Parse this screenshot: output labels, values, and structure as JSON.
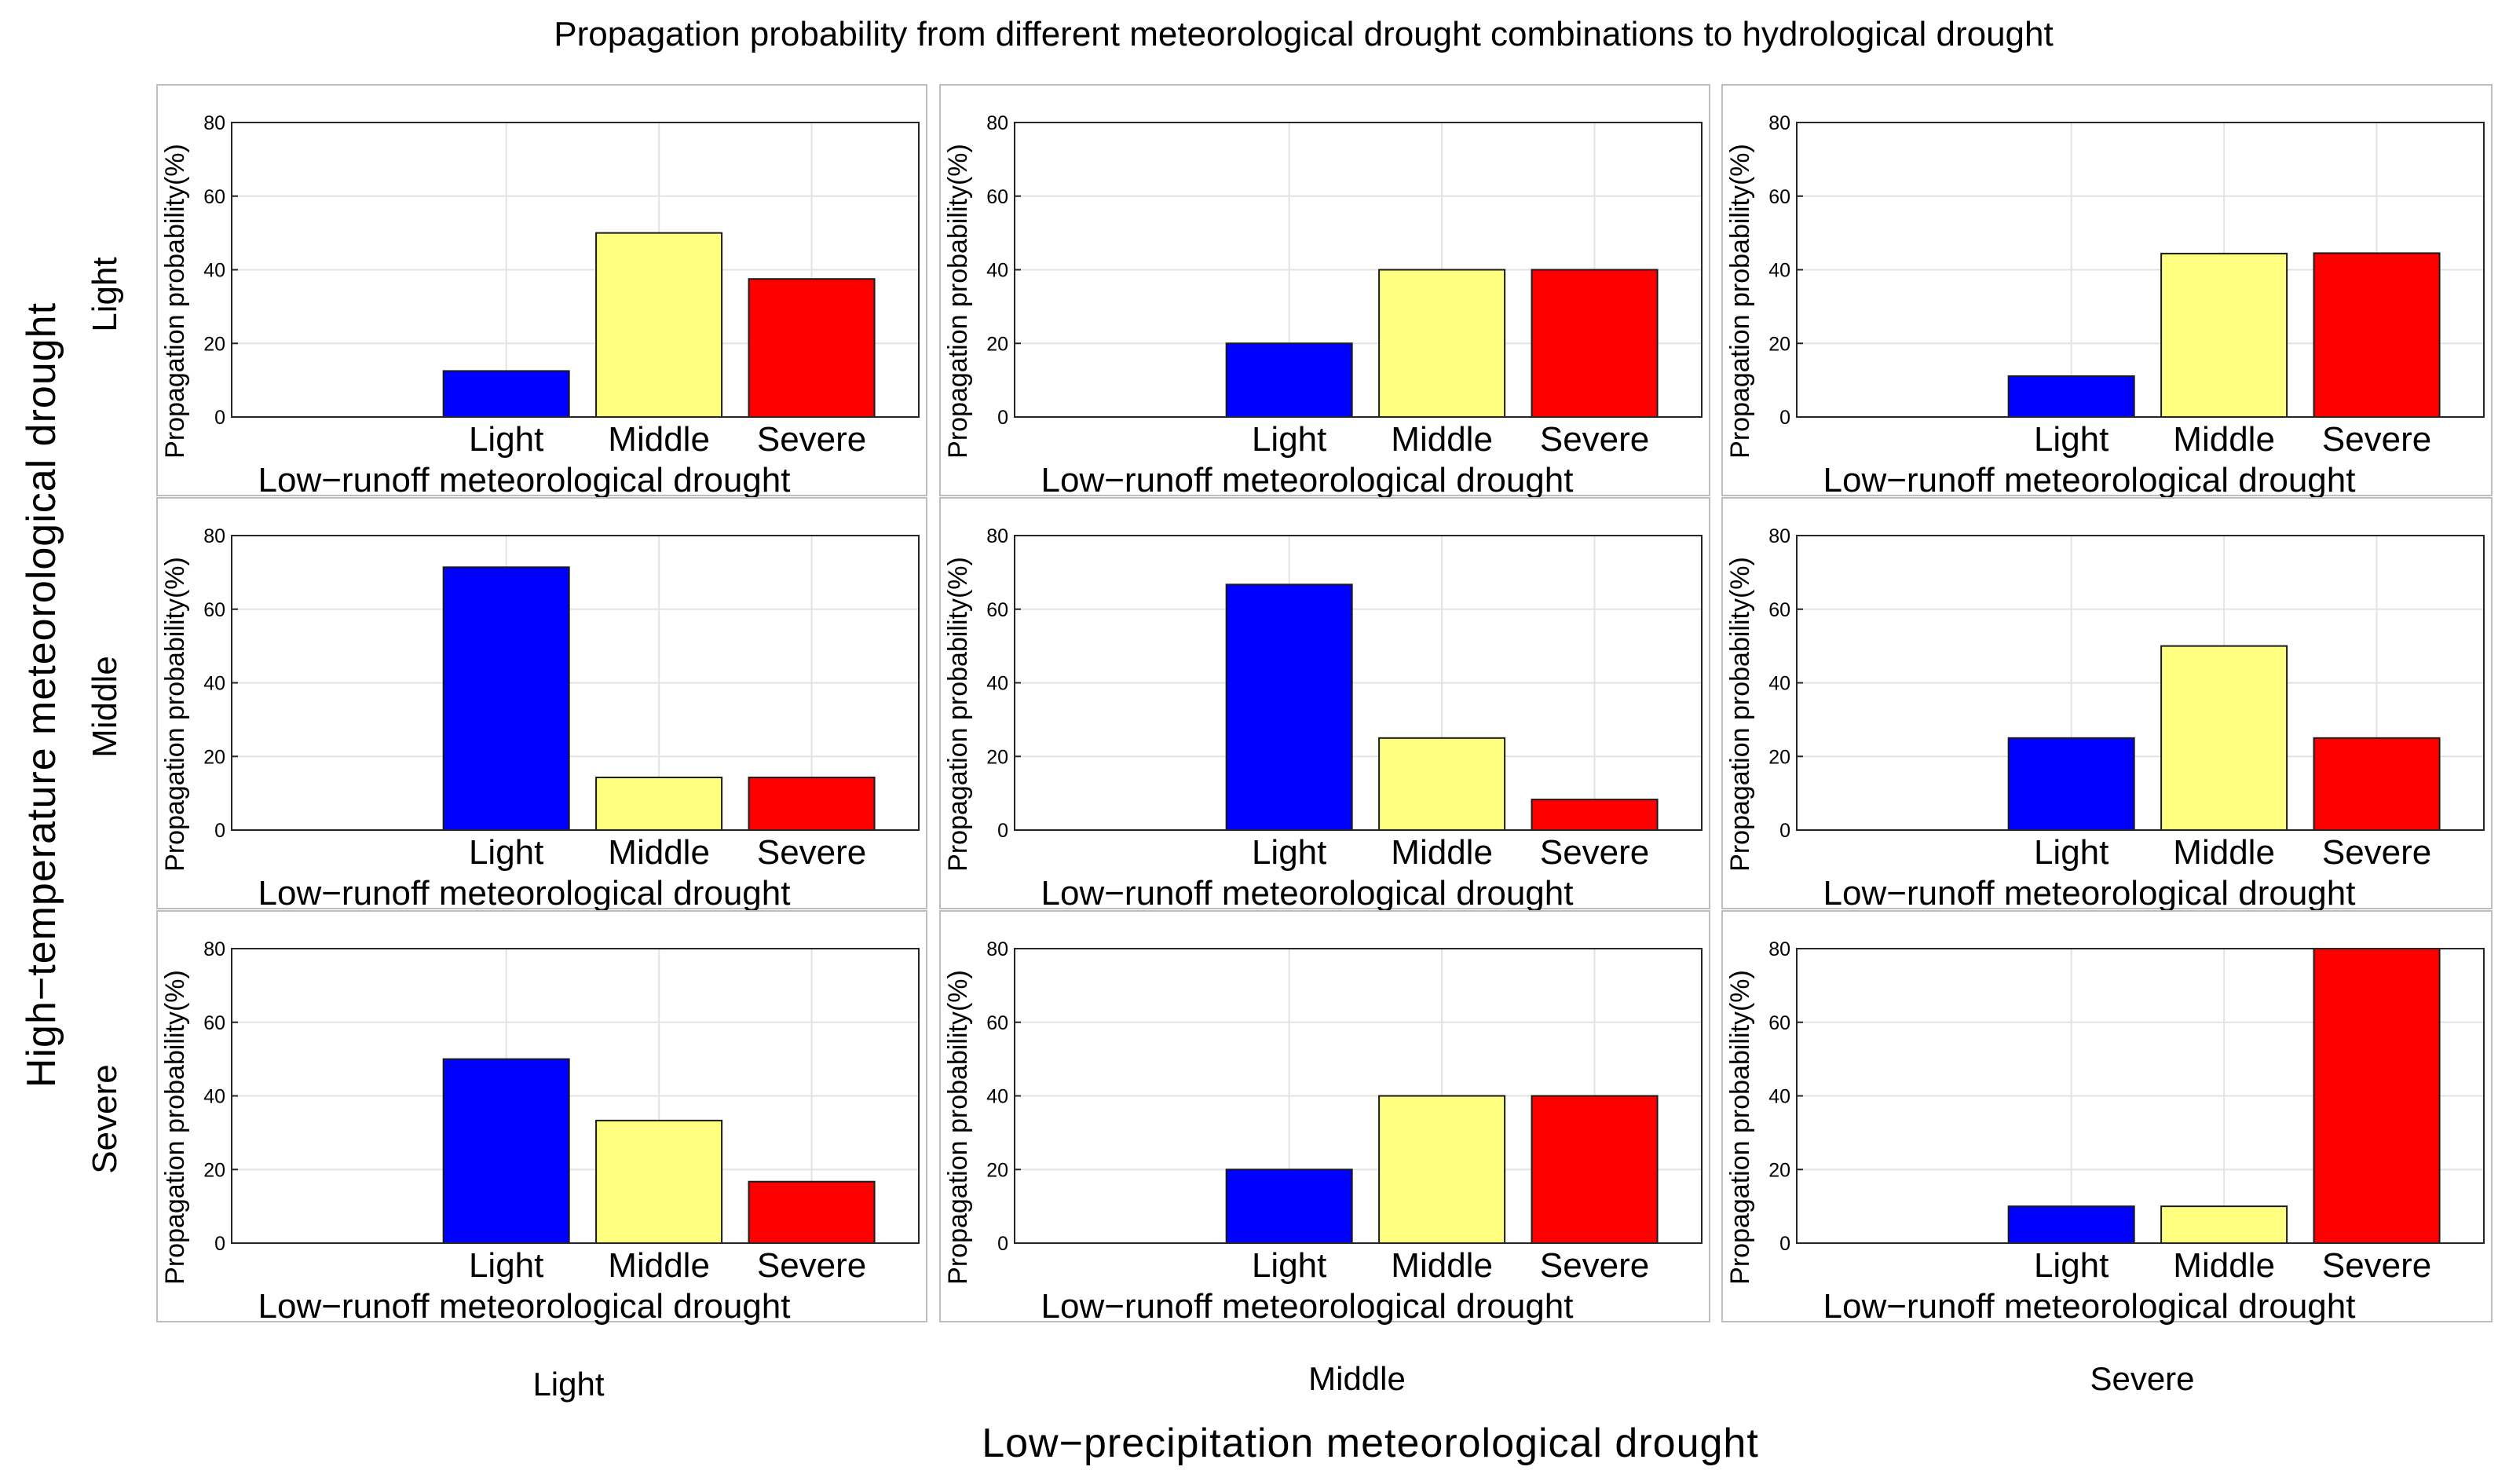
{
  "figure": {
    "title": "Propagation probability from different meteorological drought combinations to hydrological drought",
    "y_group_label": "High−temperature meteorological drought",
    "x_group_label": "Low−precipitation meteorological drought",
    "row_labels": [
      "Light",
      "Middle",
      "Severe"
    ],
    "col_labels": [
      "Light",
      "Middle",
      "Severe"
    ]
  },
  "colors": {
    "Light": "#0000ff",
    "Middle": "#ffff80",
    "Severe": "#ff0000"
  },
  "chart_data": [
    {
      "type": "bar",
      "row": "Light",
      "col": "Light",
      "categories": [
        "Light",
        "Middle",
        "Severe"
      ],
      "values": [
        12.5,
        50,
        37.5
      ],
      "xlabel": "Low−runoff meteorological drought",
      "ylabel": "Propagation probability(%)",
      "ylim": [
        0,
        80
      ],
      "yticks": [
        0,
        20,
        40,
        60,
        80
      ],
      "grid": true
    },
    {
      "type": "bar",
      "row": "Light",
      "col": "Middle",
      "categories": [
        "Light",
        "Middle",
        "Severe"
      ],
      "values": [
        20,
        40,
        40
      ],
      "xlabel": "Low−runoff meteorological drought",
      "ylabel": "Propagation probability(%)",
      "ylim": [
        0,
        80
      ],
      "yticks": [
        0,
        20,
        40,
        60,
        80
      ],
      "grid": true
    },
    {
      "type": "bar",
      "row": "Light",
      "col": "Severe",
      "categories": [
        "Light",
        "Middle",
        "Severe"
      ],
      "values": [
        11.1,
        44.4,
        44.5
      ],
      "xlabel": "Low−runoff meteorological drought",
      "ylabel": "Propagation probability(%)",
      "ylim": [
        0,
        80
      ],
      "yticks": [
        0,
        20,
        40,
        60,
        80
      ],
      "grid": true
    },
    {
      "type": "bar",
      "row": "Middle",
      "col": "Light",
      "categories": [
        "Light",
        "Middle",
        "Severe"
      ],
      "values": [
        71.4,
        14.3,
        14.3
      ],
      "xlabel": "Low−runoff meteorological drought",
      "ylabel": "Propagation probability(%)",
      "ylim": [
        0,
        80
      ],
      "yticks": [
        0,
        20,
        40,
        60,
        80
      ],
      "grid": true
    },
    {
      "type": "bar",
      "row": "Middle",
      "col": "Middle",
      "categories": [
        "Light",
        "Middle",
        "Severe"
      ],
      "values": [
        66.7,
        25,
        8.3
      ],
      "xlabel": "Low−runoff meteorological drought",
      "ylabel": "Propagation probability(%)",
      "ylim": [
        0,
        80
      ],
      "yticks": [
        0,
        20,
        40,
        60,
        80
      ],
      "grid": true
    },
    {
      "type": "bar",
      "row": "Middle",
      "col": "Severe",
      "categories": [
        "Light",
        "Middle",
        "Severe"
      ],
      "values": [
        25,
        50,
        25
      ],
      "xlabel": "Low−runoff meteorological drought",
      "ylabel": "Propagation probability(%)",
      "ylim": [
        0,
        80
      ],
      "yticks": [
        0,
        20,
        40,
        60,
        80
      ],
      "grid": true
    },
    {
      "type": "bar",
      "row": "Severe",
      "col": "Light",
      "categories": [
        "Light",
        "Middle",
        "Severe"
      ],
      "values": [
        50,
        33.3,
        16.7
      ],
      "xlabel": "Low−runoff meteorological drought",
      "ylabel": "Propagation probability(%)",
      "ylim": [
        0,
        80
      ],
      "yticks": [
        0,
        20,
        40,
        60,
        80
      ],
      "grid": true
    },
    {
      "type": "bar",
      "row": "Severe",
      "col": "Middle",
      "categories": [
        "Light",
        "Middle",
        "Severe"
      ],
      "values": [
        20,
        40,
        40
      ],
      "xlabel": "Low−runoff meteorological drought",
      "ylabel": "Propagation probability(%)",
      "ylim": [
        0,
        80
      ],
      "yticks": [
        0,
        20,
        40,
        60,
        80
      ],
      "grid": true
    },
    {
      "type": "bar",
      "row": "Severe",
      "col": "Severe",
      "categories": [
        "Light",
        "Middle",
        "Severe"
      ],
      "values": [
        10,
        10,
        80
      ],
      "xlabel": "Low−runoff meteorological drought",
      "ylabel": "Propagation probability(%)",
      "ylim": [
        0,
        80
      ],
      "yticks": [
        0,
        20,
        40,
        60,
        80
      ],
      "grid": true
    }
  ]
}
